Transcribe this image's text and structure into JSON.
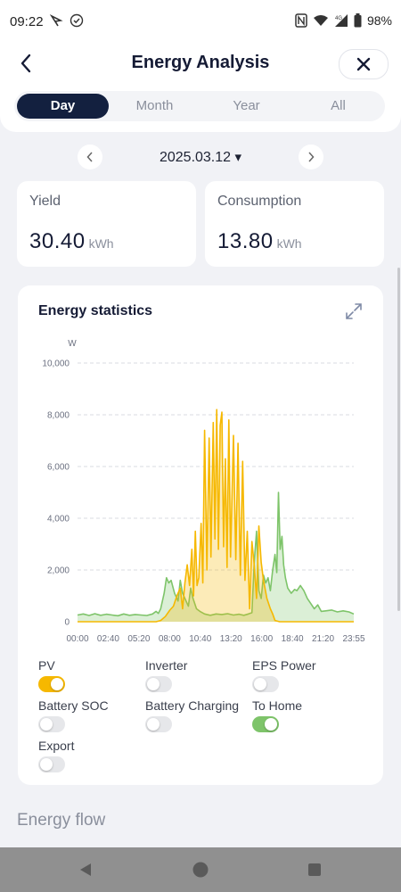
{
  "status": {
    "time": "09:22",
    "battery": "98%",
    "network": "4G"
  },
  "header": {
    "title": "Energy Analysis"
  },
  "tabs": [
    {
      "label": "Day",
      "active": true
    },
    {
      "label": "Month",
      "active": false
    },
    {
      "label": "Year",
      "active": false
    },
    {
      "label": "All",
      "active": false
    }
  ],
  "date": {
    "value": "2025.03.12",
    "caret": "▾"
  },
  "stats": {
    "yield": {
      "label": "Yield",
      "value": "30.40",
      "unit": "kWh"
    },
    "consumption": {
      "label": "Consumption",
      "value": "13.80",
      "unit": "kWh"
    }
  },
  "chart_section": {
    "title": "Energy statistics"
  },
  "chart_data": {
    "type": "area",
    "ylabel": "W",
    "ylim": [
      0,
      10000
    ],
    "yticks": [
      0,
      2000,
      4000,
      6000,
      8000,
      10000
    ],
    "ytick_labels": [
      "0",
      "2,000",
      "4,000",
      "6,000",
      "8,000",
      "10,000"
    ],
    "xticks": [
      "00:00",
      "02:40",
      "05:20",
      "08:00",
      "10:40",
      "13:20",
      "16:00",
      "18:40",
      "21:20",
      "23:55"
    ],
    "xlim_hours": [
      0,
      23.92
    ],
    "grid": true,
    "series": [
      {
        "name": "PV",
        "color": "#f6b800",
        "points": [
          [
            0,
            0
          ],
          [
            6.8,
            0
          ],
          [
            7.2,
            50
          ],
          [
            7.6,
            200
          ],
          [
            8.0,
            450
          ],
          [
            8.3,
            600
          ],
          [
            8.6,
            1000
          ],
          [
            8.9,
            1300
          ],
          [
            9.1,
            500
          ],
          [
            9.3,
            1500
          ],
          [
            9.5,
            2200
          ],
          [
            9.7,
            1400
          ],
          [
            9.9,
            2800
          ],
          [
            10.05,
            1000
          ],
          [
            10.2,
            3500
          ],
          [
            10.35,
            1400
          ],
          [
            10.5,
            1700
          ],
          [
            10.7,
            3800
          ],
          [
            10.85,
            1500
          ],
          [
            11.0,
            7400
          ],
          [
            11.2,
            2000
          ],
          [
            11.4,
            7100
          ],
          [
            11.55,
            2500
          ],
          [
            11.75,
            7700
          ],
          [
            11.9,
            3200
          ],
          [
            12.05,
            8200
          ],
          [
            12.2,
            2800
          ],
          [
            12.35,
            7600
          ],
          [
            12.5,
            8100
          ],
          [
            12.65,
            2900
          ],
          [
            12.8,
            6300
          ],
          [
            12.95,
            2100
          ],
          [
            13.1,
            7800
          ],
          [
            13.25,
            2500
          ],
          [
            13.5,
            7200
          ],
          [
            13.7,
            2400
          ],
          [
            13.9,
            6900
          ],
          [
            14.1,
            1800
          ],
          [
            14.3,
            6200
          ],
          [
            14.5,
            1600
          ],
          [
            14.7,
            3500
          ],
          [
            14.9,
            500
          ],
          [
            15.1,
            3100
          ],
          [
            15.3,
            2200
          ],
          [
            15.5,
            900
          ],
          [
            15.7,
            3700
          ],
          [
            15.9,
            2300
          ],
          [
            16.1,
            1600
          ],
          [
            16.4,
            900
          ],
          [
            16.7,
            500
          ],
          [
            16.9,
            300
          ],
          [
            17.1,
            50
          ],
          [
            17.5,
            0
          ],
          [
            23.92,
            0
          ]
        ]
      },
      {
        "name": "To Home",
        "color": "#7ec46a",
        "points": [
          [
            0,
            260
          ],
          [
            0.5,
            300
          ],
          [
            1,
            240
          ],
          [
            1.5,
            310
          ],
          [
            2,
            250
          ],
          [
            2.5,
            290
          ],
          [
            3,
            260
          ],
          [
            3.5,
            230
          ],
          [
            4,
            300
          ],
          [
            4.5,
            250
          ],
          [
            5,
            280
          ],
          [
            5.5,
            260
          ],
          [
            6,
            240
          ],
          [
            6.5,
            300
          ],
          [
            6.8,
            400
          ],
          [
            7.0,
            320
          ],
          [
            7.2,
            500
          ],
          [
            7.5,
            1100
          ],
          [
            7.7,
            1700
          ],
          [
            7.9,
            1500
          ],
          [
            8.1,
            1600
          ],
          [
            8.4,
            1100
          ],
          [
            8.7,
            800
          ],
          [
            8.9,
            1600
          ],
          [
            9.1,
            1100
          ],
          [
            9.3,
            900
          ],
          [
            9.6,
            600
          ],
          [
            9.8,
            1300
          ],
          [
            10.0,
            900
          ],
          [
            10.3,
            500
          ],
          [
            10.6,
            400
          ],
          [
            11.0,
            300
          ],
          [
            11.5,
            250
          ],
          [
            12.0,
            300
          ],
          [
            12.5,
            280
          ],
          [
            13.0,
            310
          ],
          [
            13.5,
            260
          ],
          [
            14.0,
            290
          ],
          [
            14.4,
            250
          ],
          [
            14.8,
            300
          ],
          [
            15.1,
            350
          ],
          [
            15.3,
            2300
          ],
          [
            15.5,
            3500
          ],
          [
            15.7,
            1200
          ],
          [
            15.9,
            900
          ],
          [
            16.1,
            1800
          ],
          [
            16.3,
            1500
          ],
          [
            16.5,
            1700
          ],
          [
            16.7,
            1200
          ],
          [
            16.9,
            2000
          ],
          [
            17.1,
            2600
          ],
          [
            17.25,
            1900
          ],
          [
            17.4,
            5000
          ],
          [
            17.55,
            2800
          ],
          [
            17.7,
            3300
          ],
          [
            17.85,
            2200
          ],
          [
            18.0,
            1700
          ],
          [
            18.2,
            1300
          ],
          [
            18.5,
            1100
          ],
          [
            18.8,
            1250
          ],
          [
            19.0,
            1200
          ],
          [
            19.3,
            1400
          ],
          [
            19.6,
            1200
          ],
          [
            19.9,
            900
          ],
          [
            20.2,
            700
          ],
          [
            20.5,
            500
          ],
          [
            20.8,
            650
          ],
          [
            21.1,
            400
          ],
          [
            21.5,
            420
          ],
          [
            22.0,
            450
          ],
          [
            22.5,
            380
          ],
          [
            23.0,
            420
          ],
          [
            23.5,
            380
          ],
          [
            23.92,
            300
          ]
        ]
      }
    ]
  },
  "legend": [
    {
      "label": "PV",
      "on": true,
      "color": "#f6b800"
    },
    {
      "label": "Inverter",
      "on": false
    },
    {
      "label": "EPS Power",
      "on": false
    },
    {
      "label": "Battery SOC",
      "on": false
    },
    {
      "label": "Battery Charging",
      "on": false
    },
    {
      "label": "To Home",
      "on": true,
      "color": "#7ec46a"
    },
    {
      "label": "Export",
      "on": false
    }
  ],
  "energy_flow": {
    "title": "Energy flow"
  }
}
